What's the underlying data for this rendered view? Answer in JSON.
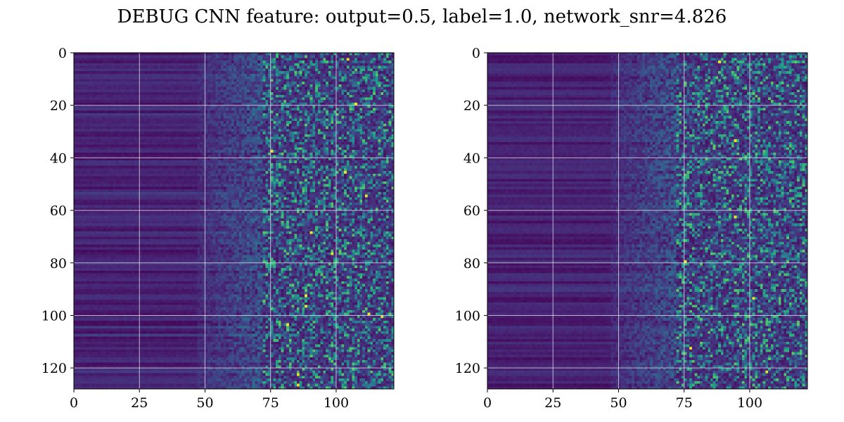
{
  "title": "DEBUG CNN feature: output=0.5, label=1.0, network_snr=4.826",
  "chart_data": [
    {
      "type": "heatmap",
      "colormap": "viridis",
      "rows": 128,
      "cols": 122,
      "grid": true,
      "xlim": [
        0,
        122
      ],
      "ylim": [
        128,
        0
      ],
      "xticks": [
        0,
        25,
        50,
        75,
        100
      ],
      "yticks": [
        0,
        20,
        40,
        60,
        80,
        100,
        120
      ],
      "xlabel": "",
      "ylabel": "",
      "value_range": [
        0,
        1
      ],
      "noise_onset_col": 72,
      "hot_pixels": [
        [
          2,
          104
        ],
        [
          19,
          107
        ],
        [
          37,
          75
        ],
        [
          45,
          103
        ],
        [
          54,
          111
        ],
        [
          68,
          90
        ],
        [
          76,
          98
        ],
        [
          92,
          88
        ],
        [
          96,
          88
        ],
        [
          99,
          112
        ],
        [
          100,
          117
        ],
        [
          103,
          81
        ],
        [
          122,
          85
        ],
        [
          126,
          85
        ]
      ]
    },
    {
      "type": "heatmap",
      "colormap": "viridis",
      "rows": 128,
      "cols": 122,
      "grid": true,
      "xlim": [
        0,
        122
      ],
      "ylim": [
        128,
        0
      ],
      "xticks": [
        0,
        25,
        50,
        75,
        100
      ],
      "yticks": [
        0,
        20,
        40,
        60,
        80,
        100,
        120
      ],
      "xlabel": "",
      "ylabel": "",
      "value_range": [
        0,
        1
      ],
      "noise_onset_col": 72,
      "hot_pixels": [
        [
          3,
          88
        ],
        [
          33,
          94
        ],
        [
          62,
          94
        ],
        [
          79,
          75
        ],
        [
          93,
          101
        ],
        [
          112,
          77
        ],
        [
          121,
          106
        ]
      ]
    }
  ]
}
